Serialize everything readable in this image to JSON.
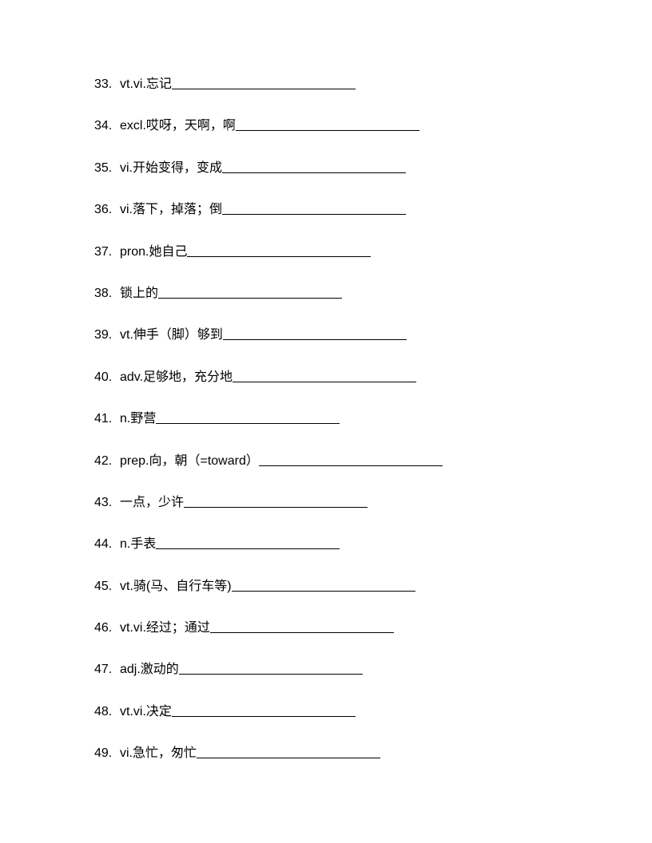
{
  "page": {
    "background_color": "#ffffff",
    "text_color": "#000000",
    "font_size": 16,
    "font_family": "Microsoft YaHei",
    "line_gap": 30,
    "blank_width": 230
  },
  "items": [
    {
      "number": "33.",
      "text": "vt.vi.忘记",
      "blank_width": 230
    },
    {
      "number": "34.",
      "text": "excl.哎呀，天啊，啊",
      "blank_width": 230
    },
    {
      "number": "35.",
      "text": "vi.开始变得，变成",
      "blank_width": 230
    },
    {
      "number": "36.",
      "text": "vi.落下，掉落；倒",
      "blank_width": 230
    },
    {
      "number": "37.",
      "text": "pron.她自己",
      "blank_width": 230
    },
    {
      "number": "38.",
      "text": "锁上的",
      "blank_width": 230
    },
    {
      "number": "39.",
      "text": "vt.伸手（脚）够到",
      "blank_width": 230
    },
    {
      "number": "40.",
      "text": "adv.足够地，充分地",
      "blank_width": 230
    },
    {
      "number": "41.",
      "text": "n.野营",
      "blank_width": 230
    },
    {
      "number": "42.",
      "text": "prep.向，朝（=toward）",
      "blank_width": 230
    },
    {
      "number": "43.",
      "text": "一点，少许",
      "blank_width": 230
    },
    {
      "number": "44.",
      "text": "n.手表",
      "blank_width": 230
    },
    {
      "number": "45.",
      "text": "vt.骑(马、自行车等)",
      "blank_width": 230
    },
    {
      "number": "46.",
      "text": "vt.vi.经过；通过",
      "blank_width": 230
    },
    {
      "number": "47.",
      "text": "adj.激动的",
      "blank_width": 230
    },
    {
      "number": "48.",
      "text": "vt.vi.决定",
      "blank_width": 230
    },
    {
      "number": "49.",
      "text": "vi.急忙，匆忙",
      "blank_width": 230
    }
  ]
}
